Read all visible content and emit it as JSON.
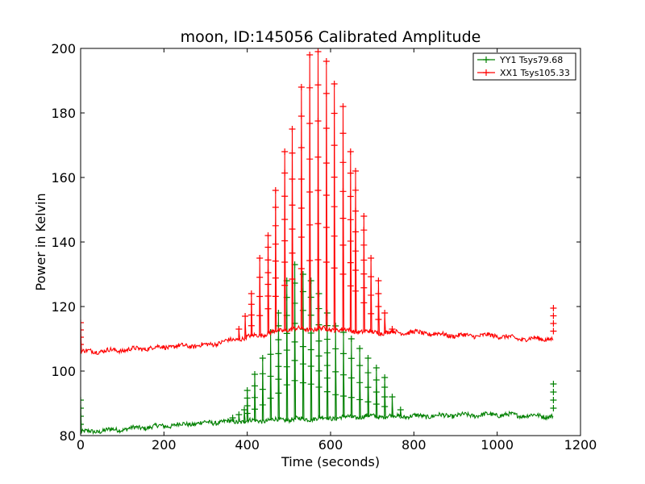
{
  "chart_data": {
    "type": "line",
    "title": "moon, ID:145056 Calibrated Amplitude",
    "xlabel": "Time (seconds)",
    "ylabel": "Power in Kelvin",
    "xlim": [
      0,
      1200
    ],
    "ylim": [
      80,
      200
    ],
    "xticks": [
      0,
      200,
      400,
      600,
      800,
      1000,
      1200
    ],
    "yticks": [
      80,
      100,
      120,
      140,
      160,
      180,
      200
    ],
    "grid": false,
    "legend_position": "top-right",
    "series": [
      {
        "name": "YY1 Tsys79.68",
        "color": "#008000",
        "baseline": [
          [
            0,
            81
          ],
          [
            100,
            82
          ],
          [
            200,
            83
          ],
          [
            300,
            84
          ],
          [
            400,
            84.5
          ],
          [
            500,
            85
          ],
          [
            600,
            85.5
          ],
          [
            700,
            86
          ],
          [
            800,
            86
          ],
          [
            1000,
            86.5
          ],
          [
            1135,
            86
          ]
        ],
        "spikes": [
          [
            0,
            91
          ],
          [
            365,
            85.5
          ],
          [
            380,
            86.5
          ],
          [
            393,
            88
          ],
          [
            400,
            94
          ],
          [
            418,
            99
          ],
          [
            437,
            104
          ],
          [
            456,
            112
          ],
          [
            475,
            118
          ],
          [
            495,
            128
          ],
          [
            514,
            133
          ],
          [
            534,
            130
          ],
          [
            553,
            128
          ],
          [
            572,
            124
          ],
          [
            592,
            118
          ],
          [
            612,
            114
          ],
          [
            631,
            112
          ],
          [
            650,
            110
          ],
          [
            670,
            107
          ],
          [
            690,
            104
          ],
          [
            710,
            101
          ],
          [
            730,
            98
          ],
          [
            748,
            92
          ],
          [
            768,
            88
          ],
          [
            1135,
            96
          ]
        ]
      },
      {
        "name": "XX1 Tsys105.33",
        "color": "#ff0000",
        "baseline": [
          [
            0,
            106
          ],
          [
            100,
            106.5
          ],
          [
            200,
            107.5
          ],
          [
            300,
            108
          ],
          [
            400,
            110.5
          ],
          [
            500,
            113
          ],
          [
            600,
            113
          ],
          [
            700,
            112
          ],
          [
            800,
            112
          ],
          [
            900,
            111
          ],
          [
            1000,
            111
          ],
          [
            1050,
            110
          ],
          [
            1135,
            110
          ]
        ],
        "spikes": [
          [
            0,
            115
          ],
          [
            380,
            113
          ],
          [
            395,
            117
          ],
          [
            410,
            124
          ],
          [
            430,
            135
          ],
          [
            450,
            142
          ],
          [
            468,
            156
          ],
          [
            490,
            168
          ],
          [
            508,
            175
          ],
          [
            530,
            188
          ],
          [
            550,
            198
          ],
          [
            570,
            199
          ],
          [
            590,
            196
          ],
          [
            609,
            189
          ],
          [
            630,
            182
          ],
          [
            648,
            168
          ],
          [
            660,
            162
          ],
          [
            680,
            148
          ],
          [
            697,
            135
          ],
          [
            715,
            128
          ],
          [
            730,
            118
          ],
          [
            748,
            113
          ],
          [
            1135,
            119.5
          ]
        ]
      }
    ]
  }
}
